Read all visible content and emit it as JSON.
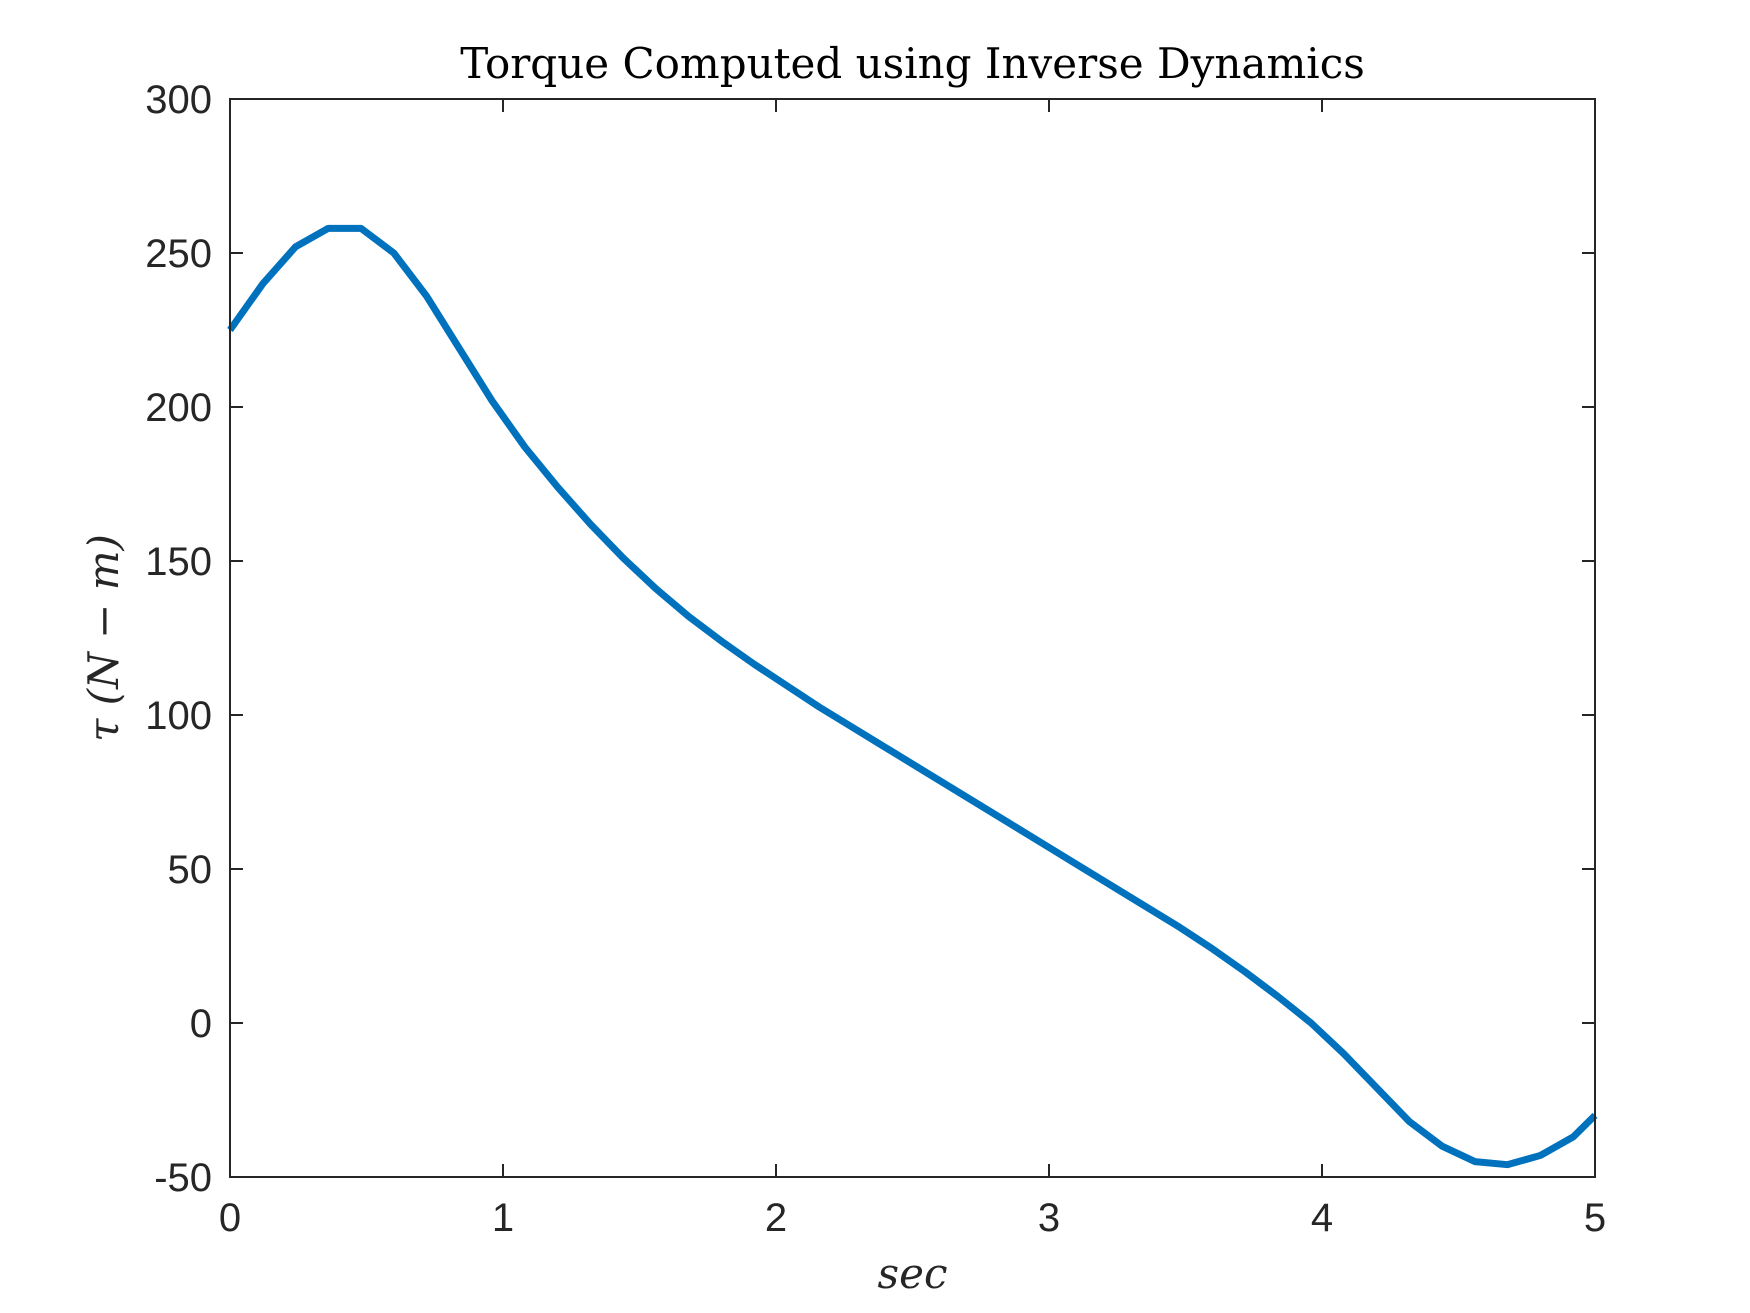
{
  "chart_data": {
    "type": "line",
    "title": "Torque Computed using Inverse Dynamics",
    "xlabel": "sec",
    "ylabel": "τ (N − m)",
    "xlim": [
      0,
      5
    ],
    "ylim": [
      -50,
      300
    ],
    "xticks": [
      0,
      1,
      2,
      3,
      4,
      5
    ],
    "yticks": [
      -50,
      0,
      50,
      100,
      150,
      200,
      250,
      300
    ],
    "xtick_labels": [
      "0",
      "1",
      "2",
      "3",
      "4",
      "5"
    ],
    "ytick_labels": [
      "-50",
      "0",
      "50",
      "100",
      "150",
      "200",
      "250",
      "300"
    ],
    "grid": false,
    "box": true,
    "series": [
      {
        "color": "#0072BD",
        "x": [
          0,
          0.12,
          0.24,
          0.36,
          0.48,
          0.6,
          0.72,
          0.84,
          0.96,
          1.08,
          1.2,
          1.32,
          1.44,
          1.56,
          1.68,
          1.8,
          1.92,
          2.04,
          2.16,
          2.28,
          2.4,
          2.52,
          2.64,
          2.76,
          2.88,
          3.0,
          3.12,
          3.24,
          3.36,
          3.48,
          3.6,
          3.72,
          3.84,
          3.96,
          4.08,
          4.2,
          4.32,
          4.44,
          4.56,
          4.68,
          4.8,
          4.92,
          5.0
        ],
        "y": [
          225,
          240,
          252,
          258,
          258,
          250,
          236,
          219,
          202,
          187,
          174,
          162,
          151,
          141,
          132,
          124,
          116.5,
          109.5,
          102.5,
          96,
          89.5,
          83,
          76.5,
          70,
          63.5,
          57,
          50.5,
          44,
          37.5,
          31,
          24,
          16.5,
          8.5,
          0,
          -10,
          -21,
          -32,
          -40,
          -45,
          -46,
          -43,
          -37,
          -30
        ]
      }
    ]
  }
}
